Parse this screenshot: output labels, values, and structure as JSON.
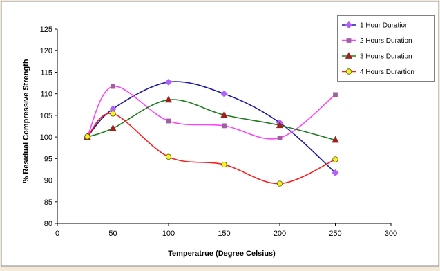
{
  "chart_data": {
    "type": "line",
    "title": "",
    "xlabel": "Temperatrue (Degree Celsius)",
    "ylabel": "% Residual Compressive Strength",
    "xlim": [
      0,
      300
    ],
    "ylim": [
      80,
      125
    ],
    "x_ticks": [
      0,
      50,
      100,
      150,
      200,
      250,
      300
    ],
    "y_ticks": [
      80,
      85,
      90,
      95,
      100,
      105,
      110,
      115,
      120,
      125
    ],
    "grid": false,
    "smooth": true,
    "legend": "top-right",
    "series": [
      {
        "name": "1 Hour Duration",
        "color": "#1a1aa0",
        "marker_color": "#b060ff",
        "marker": "diamond",
        "x": [
          27,
          50,
          100,
          150,
          200,
          250
        ],
        "y": [
          100,
          106.5,
          112.7,
          110,
          103.3,
          91.7
        ]
      },
      {
        "name": "2 Hours Duration",
        "color": "#ff40ff",
        "marker_color": "#a060a0",
        "marker": "square",
        "x": [
          27,
          50,
          100,
          150,
          200,
          250
        ],
        "y": [
          100,
          111.7,
          103.7,
          102.6,
          99.8,
          109.8
        ]
      },
      {
        "name": "3 Hours Duration",
        "color": "#1c7a1c",
        "marker_color": "#a02020",
        "marker": "triangle",
        "x": [
          27,
          50,
          100,
          150,
          200,
          250
        ],
        "y": [
          100,
          102,
          108.6,
          105.1,
          102.7,
          99.3
        ]
      },
      {
        "name": "4 Hours Durartion",
        "color": "#ff1a1a",
        "marker_color": "#f4f420",
        "marker": "circle",
        "x": [
          27,
          50,
          100,
          150,
          200,
          250
        ],
        "y": [
          100.1,
          105.4,
          95.4,
          93.6,
          89.2,
          94.8
        ]
      }
    ]
  }
}
